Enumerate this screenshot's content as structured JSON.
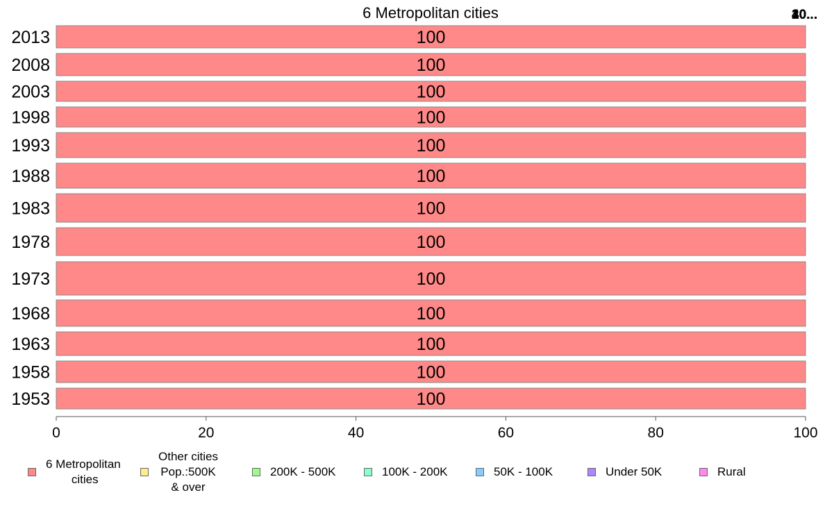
{
  "chart_data": {
    "type": "bar",
    "orientation": "horizontal",
    "stacked": true,
    "title": "6 Metropolitan cities",
    "corner_labels": [
      "10...",
      "20...",
      "30...",
      "40..."
    ],
    "categories": [
      "2013",
      "2008",
      "2003",
      "1998",
      "1993",
      "1988",
      "1983",
      "1978",
      "1973",
      "1968",
      "1963",
      "1958",
      "1953"
    ],
    "series": [
      {
        "name": "6 Metropolitan\n cities",
        "color": "#ff8888",
        "values": [
          100,
          100,
          100,
          100,
          100,
          100,
          100,
          100,
          100,
          100,
          100,
          100,
          100
        ]
      },
      {
        "name": "Other cities\nPop.:500K\n& over",
        "color": "#ffee88",
        "values": [
          0,
          0,
          0,
          0,
          0,
          0,
          0,
          0,
          0,
          0,
          0,
          0,
          0
        ]
      },
      {
        "name": "200K - 500K",
        "color": "#99ff88",
        "values": [
          0,
          0,
          0,
          0,
          0,
          0,
          0,
          0,
          0,
          0,
          0,
          0,
          0
        ]
      },
      {
        "name": "100K - 200K",
        "color": "#88ffcc",
        "values": [
          0,
          0,
          0,
          0,
          0,
          0,
          0,
          0,
          0,
          0,
          0,
          0,
          0
        ]
      },
      {
        "name": "50K - 100K",
        "color": "#88ccff",
        "values": [
          0,
          0,
          0,
          0,
          0,
          0,
          0,
          0,
          0,
          0,
          0,
          0,
          0
        ]
      },
      {
        "name": "Under 50K",
        "color": "#aa88ff",
        "values": [
          0,
          0,
          0,
          0,
          0,
          0,
          0,
          0,
          0,
          0,
          0,
          0,
          0
        ]
      },
      {
        "name": "Rural",
        "color": "#ff88ee",
        "values": [
          0,
          0,
          0,
          0,
          0,
          0,
          0,
          0,
          0,
          0,
          0,
          0,
          0
        ]
      }
    ],
    "data_labels": [
      "100",
      "100",
      "100",
      "100",
      "100",
      "100",
      "100",
      "100",
      "100",
      "100",
      "100",
      "100",
      "100"
    ],
    "xlim": [
      0,
      100
    ],
    "xticks": [
      0,
      20,
      40,
      60,
      80,
      100
    ],
    "xlabel": "",
    "ylabel": "",
    "grid": false,
    "legend_position": "bottom"
  }
}
